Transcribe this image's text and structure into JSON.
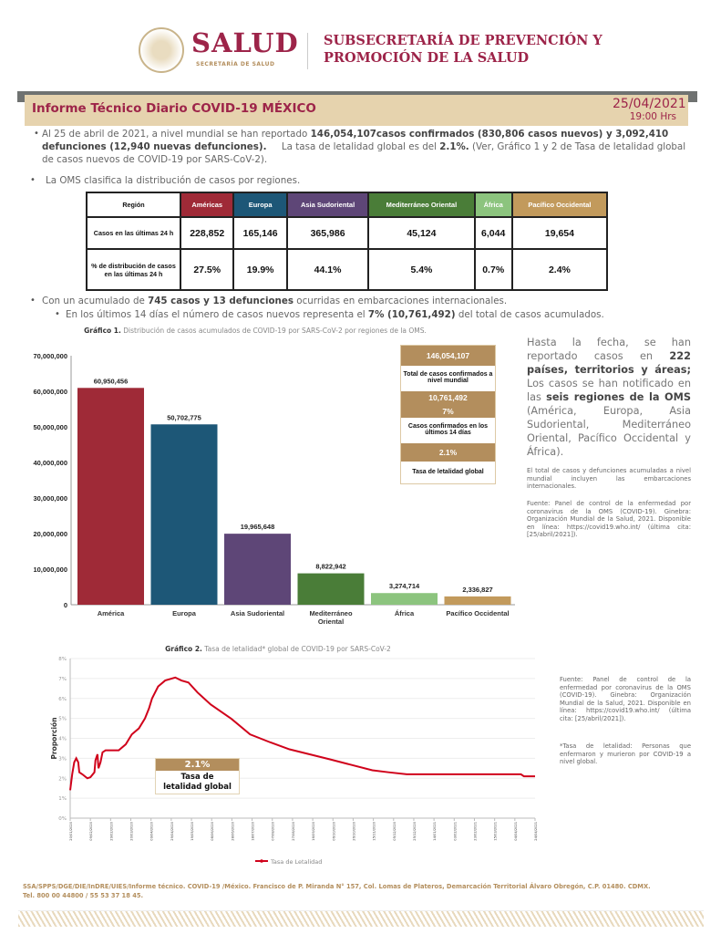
{
  "header": {
    "brand": "SALUD",
    "brand_sub": "SECRETARÍA DE SALUD",
    "subsecretaria_line1": "SUBSECRETARÍA DE PREVENCIÓN Y",
    "subsecretaria_line2": "PROMOCIÓN DE LA SALUD"
  },
  "report": {
    "title": "Informe Técnico Diario COVID-19 MÉXICO",
    "date": "25/04/2021",
    "time": "19:00 Hrs"
  },
  "para1": {
    "t1": "Al 25 de abril de 2021, a nivel mundial se han reportado ",
    "b1": "146,054,107casos confirmados (830,806 casos nuevos) y 3,092,410 defunciones (12,940 nuevas defunciones).",
    "t2": "     La tasa de letalidad global es del ",
    "b2": "2.1%.",
    "t3": " (Ver, Gráfico 1 y 2 de Tasa de letalidad global de casos nuevos de COVID-19 por SARS-CoV-2)."
  },
  "para2": "La OMS clasifica la distribución de casos por regiones.",
  "table": {
    "header_label": "Región",
    "regions": [
      {
        "name": "Américas",
        "color": "#9f2a37"
      },
      {
        "name": "Europa",
        "color": "#1d5777"
      },
      {
        "name": "Asia Sudoriental",
        "color": "#5e4677"
      },
      {
        "name": "Mediterráneo Oriental",
        "color": "#4a7d38"
      },
      {
        "name": "África",
        "color": "#8cc47e"
      },
      {
        "name": "Pacífico Occidental",
        "color": "#c29a5c"
      }
    ],
    "row1_label": "Casos en las últimas 24 h",
    "row1": [
      "228,852",
      "165,146",
      "365,986",
      "45,124",
      "6,044",
      "19,654"
    ],
    "row2_label": "% de distribución de casos en las últimas 24 h",
    "row2": [
      "27.5%",
      "19.9%",
      "44.1%",
      "5.4%",
      "0.7%",
      "2.4%"
    ]
  },
  "para3": {
    "t1": "Con un acumulado de ",
    "b1": "745 casos y 13 defunciones",
    "t2": " ocurridas en embarcaciones internacionales."
  },
  "para4": {
    "t1": "En los últimos 14 días el número de casos nuevos representa el ",
    "b1": "7% (10,761,492)",
    "t2": " del total de casos acumulados."
  },
  "chart_data": [
    {
      "type": "bar",
      "title_bold": "Gráfico 1.",
      "title": "Distribución de casos acumulados de COVID-19 por SARS-CoV-2 por regiones de la OMS.",
      "categories": [
        "América",
        "Europa",
        "Asia Sudoriental",
        "Mediterráneo Oriental",
        "África",
        "Pacífico Occidental"
      ],
      "values": [
        60950456,
        50702775,
        19965648,
        8822942,
        3274714,
        2336827
      ],
      "value_labels": [
        "60,950,456",
        "50,702,775",
        "19,965,648",
        "8,822,942",
        "3,274,714",
        "2,336,827"
      ],
      "colors": [
        "#9f2a37",
        "#1d5777",
        "#5e4677",
        "#4a7d38",
        "#8cc47e",
        "#c29a5c"
      ],
      "ylim": [
        0,
        70000000
      ],
      "yticks": [
        "0",
        "10,000,000",
        "20,000,000",
        "30,000,000",
        "40,000,000",
        "50,000,000",
        "60,000,000",
        "70,000,000"
      ],
      "grid": false
    },
    {
      "type": "line",
      "title_bold": "Gráfico 2.",
      "title": "Tasa de letalidad* global de COVID-19 por SARS-CoV-2",
      "ylabel": "Proporción",
      "ylim": [
        0,
        8
      ],
      "yticks": [
        "0%",
        "1%",
        "2%",
        "3%",
        "4%",
        "5%",
        "6%",
        "7%",
        "8%"
      ],
      "grid": true,
      "legend": "bottom",
      "color": "#d0021b",
      "series": [
        {
          "name": "Tasa de Letalidad",
          "points": [
            [
              "20/01/2020",
              1.4
            ],
            [
              "22/01/2020",
              2.2
            ],
            [
              "24/01/2020",
              2.8
            ],
            [
              "26/01/2020",
              3.0
            ],
            [
              "28/01/2020",
              2.8
            ],
            [
              "29/01/2020",
              2.3
            ],
            [
              "01/02/2020",
              2.2
            ],
            [
              "06/02/2020",
              2.0
            ],
            [
              "09/02/2020",
              2.05
            ],
            [
              "13/02/2020",
              2.3
            ],
            [
              "14/02/2020",
              2.9
            ],
            [
              "16/02/2020",
              3.2
            ],
            [
              "17/02/2020",
              2.5
            ],
            [
              "19/02/2020",
              2.8
            ],
            [
              "21/02/2020",
              3.3
            ],
            [
              "24/02/2020",
              3.4
            ],
            [
              "08/03/2020",
              3.4
            ],
            [
              "15/03/2020",
              3.7
            ],
            [
              "21/03/2020",
              4.2
            ],
            [
              "28/03/2020",
              4.5
            ],
            [
              "03/04/2020",
              5.0
            ],
            [
              "07/04/2020",
              5.5
            ],
            [
              "10/04/2020",
              6.0
            ],
            [
              "16/04/2020",
              6.6
            ],
            [
              "23/04/2020",
              6.9
            ],
            [
              "03/05/2020",
              7.05
            ],
            [
              "09/05/2020",
              6.9
            ],
            [
              "16/05/2020",
              6.8
            ],
            [
              "25/05/2020",
              6.3
            ],
            [
              "07/06/2020",
              5.7
            ],
            [
              "27/06/2020",
              5.0
            ],
            [
              "16/07/2020",
              4.2
            ],
            [
              "05/08/2020",
              3.8
            ],
            [
              "24/08/2020",
              3.45
            ],
            [
              "13/09/2020",
              3.2
            ],
            [
              "03/10/2020",
              2.95
            ],
            [
              "22/10/2020",
              2.7
            ],
            [
              "14/11/2020",
              2.4
            ],
            [
              "30/11/2020",
              2.3
            ],
            [
              "18/12/2020",
              2.2
            ],
            [
              "10/04/2021",
              2.2
            ],
            [
              "13/04/2021",
              2.1
            ],
            [
              "24/04/2021",
              2.1
            ]
          ]
        }
      ],
      "xticks": [
        "20/01/2020",
        "09/02/2020",
        "29/02/2020",
        "20/03/2020",
        "09/04/2020",
        "29/04/2020",
        "19/05/2020",
        "08/06/2020",
        "28/06/2020",
        "18/07/2020",
        "07/08/2020",
        "27/08/2020",
        "16/09/2020",
        "06/10/2020",
        "26/10/2020",
        "15/11/2020",
        "05/12/2020",
        "25/12/2020",
        "14/01/2021",
        "03/02/2021",
        "23/02/2021",
        "15/03/2021",
        "04/04/2021",
        "24/04/2021"
      ],
      "annotation": {
        "value": "2.1%",
        "label": "Tasa de letalidad global"
      }
    }
  ],
  "summary_box": {
    "total": "146,054,107",
    "total_label": "Total de casos confirmados a nivel mundial",
    "last14": "10,761,492",
    "last14_pct": "7%",
    "last14_label": "Casos confirmados en los últimos 14 días",
    "rate": "2.1%",
    "rate_label": "Tasa de letalidad global"
  },
  "side": {
    "t1": "Hasta la fecha, se han reportado casos en ",
    "b1": "222 países, territorios y áreas;",
    "t2": " Los casos se han notificado en las ",
    "b2": "seis regiones de la OMS",
    "t3": " (América, Europa, Asia Sudoriental, Mediterráneo Oriental, Pacífico Occidental y África).",
    "note": "El total de casos y defunciones acumuladas a nivel mundial incluyen las embarcaciones internacionales.",
    "source1": "Fuente: Panel de control de la enfermedad por coronavirus de la OMS (COVID-19). Ginebra: Organización Mundial de la Salud, 2021. Disponible en línea: https://covid19.who.int/ (última cita: [25/abril/2021]).",
    "source2": "Fuente: Panel de control de la enfermedad por coronavirus de la OMS (COVID-19). Ginebra: Organización Mundial de la Salud, 2021. Disponible en línea: https://covid19.who.int/ (última cita: [25/abril/2021]).",
    "footnote": "*Tasa de letalidad: Personas que enfermaron y murieron por COVID-19 a nivel global."
  },
  "footer": {
    "line1": "SSA/SPPS/DGE/DIE/InDRE/UIES/Informe técnico. COVID-19 /México. Francisco de P. Miranda N° 157, Col. Lomas de Plateros, Demarcación Territorial Álvaro Obregón, C.P. 01480. CDMX.",
    "line2": "Tel. 800 00 44800 / 55 53 37 18 45."
  }
}
